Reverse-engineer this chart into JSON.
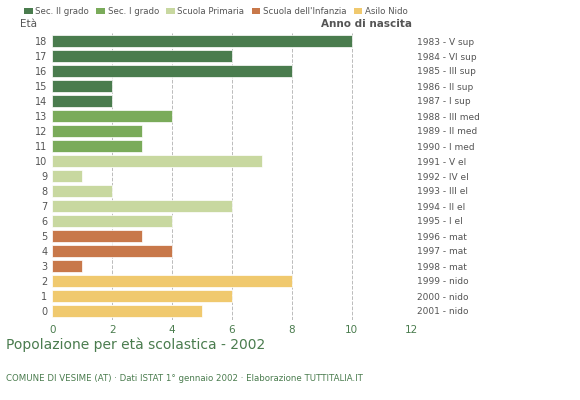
{
  "ages": [
    18,
    17,
    16,
    15,
    14,
    13,
    12,
    11,
    10,
    9,
    8,
    7,
    6,
    5,
    4,
    3,
    2,
    1,
    0
  ],
  "values": [
    10,
    6,
    8,
    2,
    2,
    4,
    3,
    3,
    7,
    1,
    2,
    6,
    4,
    3,
    4,
    1,
    8,
    6,
    5
  ],
  "colors": [
    "#4a7c4e",
    "#4a7c4e",
    "#4a7c4e",
    "#4a7c4e",
    "#4a7c4e",
    "#7aab5a",
    "#7aab5a",
    "#7aab5a",
    "#c8d8a0",
    "#c8d8a0",
    "#c8d8a0",
    "#c8d8a0",
    "#c8d8a0",
    "#c8784a",
    "#c8784a",
    "#c8784a",
    "#f0c96e",
    "#f0c96e",
    "#f0c96e"
  ],
  "right_labels": [
    "1983 - V sup",
    "1984 - VI sup",
    "1985 - III sup",
    "1986 - II sup",
    "1987 - I sup",
    "1988 - III med",
    "1989 - II med",
    "1990 - I med",
    "1991 - V el",
    "1992 - IV el",
    "1993 - III el",
    "1994 - II el",
    "1995 - I el",
    "1996 - mat",
    "1997 - mat",
    "1998 - mat",
    "1999 - nido",
    "2000 - nido",
    "2001 - nido"
  ],
  "legend_labels": [
    "Sec. II grado",
    "Sec. I grado",
    "Scuola Primaria",
    "Scuola dell'Infanzia",
    "Asilo Nido"
  ],
  "legend_colors": [
    "#4a7c4e",
    "#7aab5a",
    "#c8d8a0",
    "#c8784a",
    "#f0c96e"
  ],
  "title": "Popolazione per età scolastica - 2002",
  "subtitle": "COMUNE DI VESIME (AT) · Dati ISTAT 1° gennaio 2002 · Elaborazione TUTTITALIA.IT",
  "xlabel_eta": "Età",
  "xlabel_anno": "Anno di nascita",
  "xlim": [
    0,
    12
  ],
  "xticks": [
    0,
    2,
    4,
    6,
    8,
    10,
    12
  ],
  "background_color": "#ffffff",
  "grid_color": "#bbbbbb",
  "bar_height": 0.82,
  "title_color": "#4a7c4e",
  "subtitle_color": "#4a7c4e",
  "tick_color": "#4a7c4e",
  "label_color": "#555555"
}
